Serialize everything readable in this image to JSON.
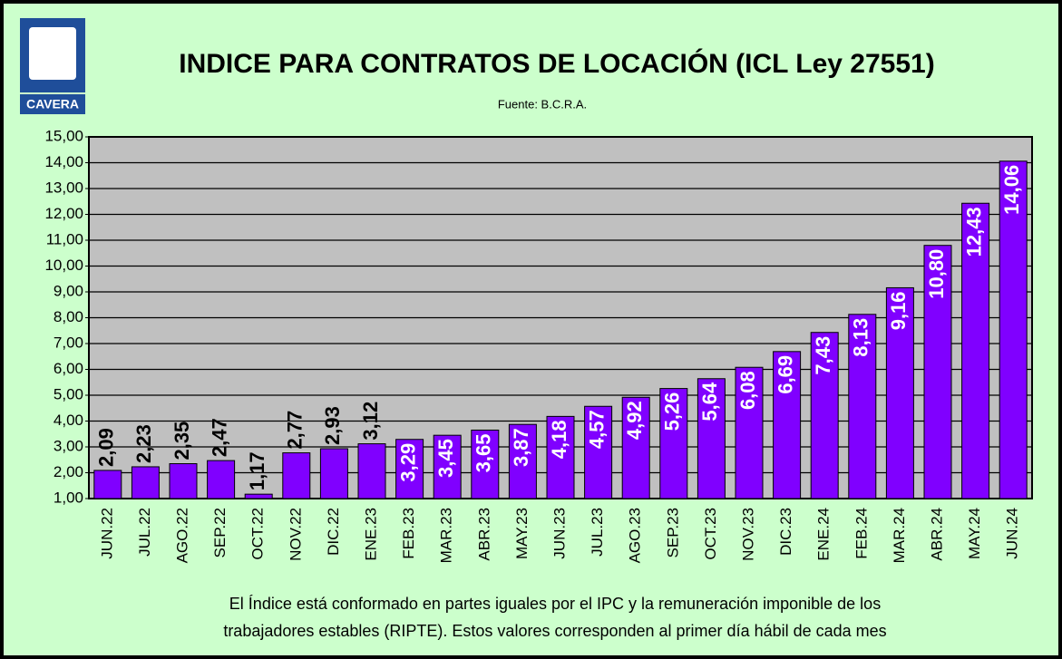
{
  "chart_data": {
    "type": "bar",
    "logo": "CAVERA",
    "title": "INDICE PARA  CONTRATOS DE LOCACIÓN (ICL Ley 27551)",
    "subtitle": "Fuente:  B.C.R.A.",
    "footnote": [
      "El Índice está conformado  en partes iguales por el IPC y la remuneración  imponible  de los",
      "trabajadores estables (RIPTE). Estos valores corresponden  al primer día hábil de cada mes"
    ],
    "categories": [
      "JUN.22",
      "JUL.22",
      "AGO.22",
      "SEP.22",
      "OCT.22",
      "NOV.22",
      "DIC.22",
      "ENE.23",
      "FEB.23",
      "MAR.23",
      "ABR.23",
      "MAY.23",
      "JUN.23",
      "JUL.23",
      "AGO.23",
      "SEP.23",
      "OCT.23",
      "NOV.23",
      "DIC.23",
      "ENE.24",
      "FEB.24",
      "MAR.24",
      "ABR.24",
      "MAY.24",
      "JUN.24"
    ],
    "values": [
      2.09,
      2.23,
      2.35,
      2.47,
      1.17,
      2.77,
      2.93,
      3.12,
      3.29,
      3.45,
      3.65,
      3.87,
      4.18,
      4.57,
      4.92,
      5.26,
      5.64,
      6.08,
      6.69,
      7.43,
      8.13,
      9.16,
      10.8,
      12.43,
      14.06
    ],
    "value_labels": [
      "2,09",
      "2,23",
      "2,35",
      "2,47",
      "1,17",
      "2,77",
      "2,93",
      "3,12",
      "3,29",
      "3,45",
      "3,65",
      "3,87",
      "4,18",
      "4,57",
      "4,92",
      "5,26",
      "5,64",
      "6,08",
      "6,69",
      "7,43",
      "8,13",
      "9,16",
      "10,80",
      "12,43",
      "14,06"
    ],
    "color": "#8000ff",
    "ylim": [
      1,
      15
    ],
    "yticks": [
      {
        "value": 1,
        "label": "1,00"
      },
      {
        "value": 2,
        "label": "2,00"
      },
      {
        "value": 3,
        "label": "3,00"
      },
      {
        "value": 4,
        "label": "4,00"
      },
      {
        "value": 5,
        "label": "5,00"
      },
      {
        "value": 6,
        "label": "6,00"
      },
      {
        "value": 7,
        "label": "7,00"
      },
      {
        "value": 8,
        "label": "8,00"
      },
      {
        "value": 9,
        "label": "9,00"
      },
      {
        "value": 10,
        "label": "10,00"
      },
      {
        "value": 11,
        "label": "11,00"
      },
      {
        "value": 12,
        "label": "12,00"
      },
      {
        "value": 13,
        "label": "13,00"
      },
      {
        "value": 14,
        "label": "14,00"
      },
      {
        "value": 15,
        "label": "15,00"
      }
    ],
    "grid": true
  }
}
